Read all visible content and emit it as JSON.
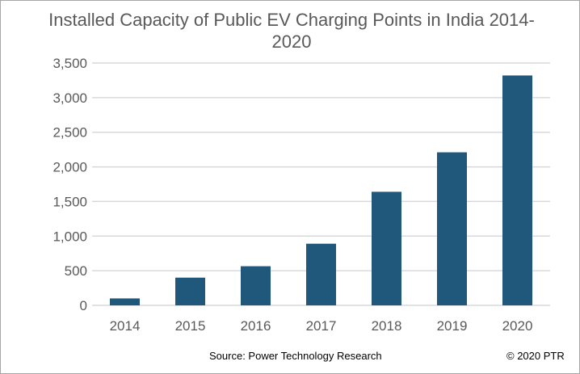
{
  "chart_data": {
    "type": "bar",
    "title": "Installed Capacity of Public EV Charging Points in India 2014-2020",
    "categories": [
      "2014",
      "2015",
      "2016",
      "2017",
      "2018",
      "2019",
      "2020"
    ],
    "values": [
      100,
      400,
      565,
      890,
      1640,
      2210,
      3320
    ],
    "ylim": [
      0,
      3500
    ],
    "yticks": [
      0,
      500,
      1000,
      1500,
      2000,
      2500,
      3000,
      3500
    ],
    "ytick_labels": [
      "0",
      "500",
      "1,000",
      "1,500",
      "2,000",
      "2,500",
      "3,000",
      "3,500"
    ],
    "xlabel": "",
    "ylabel": "",
    "grid": true,
    "bar_color": "#1f587a",
    "grid_color": "#d9d9d9"
  },
  "footer": {
    "source": "Source: Power Technology Research",
    "copyright": "© 2020 PTR"
  }
}
